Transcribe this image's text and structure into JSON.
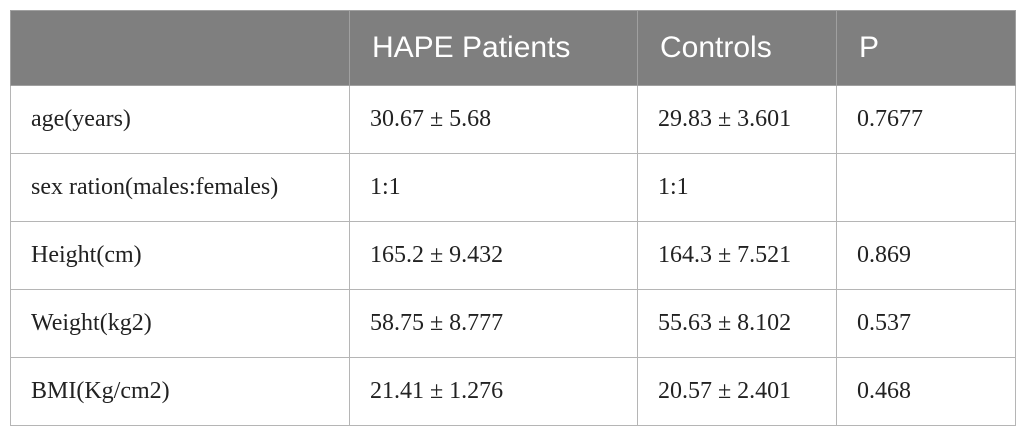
{
  "table": {
    "header": [
      "",
      "HAPE Patients",
      "Controls",
      "P"
    ],
    "rows": [
      [
        "age(years)",
        "30.67 ± 5.68",
        "29.83 ± 3.601",
        "0.7677"
      ],
      [
        "sex ration(males:females)",
        "1:1",
        "1:1"
      ],
      [
        "Height(cm)",
        "165.2 ± 9.432",
        "164.3 ± 7.521",
        "0.869"
      ],
      [
        "Weight(kg2)",
        "58.75 ± 8.777",
        "55.63 ± 8.102",
        "0.537"
      ],
      [
        "BMI(Kg/cm2)",
        "21.41 ± 1.276",
        "20.57 ± 2.401",
        "0.468"
      ]
    ]
  }
}
